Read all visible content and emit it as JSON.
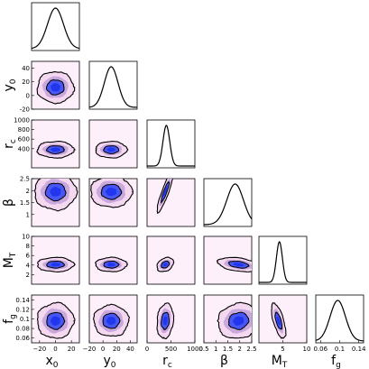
{
  "chart_data": {
    "type": "corner",
    "parameters": [
      {
        "key": "x0",
        "base": "x",
        "sub": "0",
        "range": [
          -30,
          30
        ],
        "ticks": [],
        "tick_labels": []
      },
      {
        "key": "y0",
        "base": "y",
        "sub": "0",
        "range": [
          -20,
          50
        ],
        "ticks": [
          -20,
          0,
          20,
          40
        ],
        "tick_labels": [
          "-20",
          "0",
          "20",
          "40"
        ]
      },
      {
        "key": "rc",
        "base": "r",
        "sub": "c",
        "range": [
          0,
          1000
        ],
        "ticks": [
          400,
          600,
          800,
          1000
        ],
        "tick_labels": [
          "400",
          "600",
          "800",
          "1000"
        ]
      },
      {
        "key": "beta",
        "base": "β",
        "sub": "",
        "range": [
          0.5,
          2.5
        ],
        "ticks": [
          1,
          1.5,
          2,
          2.5
        ],
        "tick_labels": [
          "1",
          "1.5",
          "2",
          "2.5"
        ]
      },
      {
        "key": "MT",
        "base": "M",
        "sub": "T",
        "range": [
          0,
          10
        ],
        "ticks": [
          2,
          4,
          6,
          8,
          10
        ],
        "tick_labels": [
          "2",
          "4",
          "6",
          "8",
          "10"
        ]
      },
      {
        "key": "fg",
        "base": "f",
        "sub": "g",
        "range": [
          0.05,
          0.15
        ],
        "ticks": [
          0.06,
          0.08,
          0.1,
          0.12,
          0.14
        ],
        "tick_labels": [
          "0.06",
          "0.08",
          "0.1",
          "0.12",
          "0.14"
        ]
      }
    ],
    "x_tick_labels": [
      {
        "param": "x0",
        "values": [
          -20,
          0,
          20
        ],
        "labels": [
          "−20",
          "0",
          "20"
        ]
      },
      {
        "param": "y0",
        "values": [
          -20,
          0,
          20,
          40
        ],
        "labels": [
          "−20",
          "0",
          "20",
          "40"
        ]
      },
      {
        "param": "rc",
        "values": [
          0,
          500,
          1000
        ],
        "labels": [
          "0",
          "500",
          "1000"
        ]
      },
      {
        "param": "beta",
        "values": [
          0.5,
          1,
          1.5,
          2,
          2.5
        ],
        "labels": [
          "0.5",
          "1",
          "1.5",
          "2",
          "2.5"
        ]
      },
      {
        "param": "MT",
        "values": [
          5,
          10
        ],
        "labels": [
          "5",
          "10"
        ]
      },
      {
        "param": "fg",
        "values": [
          0.06,
          0.1,
          0.14
        ],
        "labels": [
          "0.06",
          "0.1",
          "0.14"
        ]
      }
    ],
    "marginals": [
      {
        "param": "x0",
        "mean": 0,
        "sd": 10,
        "skew": 0
      },
      {
        "param": "y0",
        "mean": 12,
        "sd": 10,
        "skew": 0
      },
      {
        "param": "rc",
        "mean": 380,
        "sd": 75,
        "skew": 0.35
      },
      {
        "param": "beta",
        "mean": 1.95,
        "sd": 0.38,
        "skew": -0.45
      },
      {
        "param": "MT",
        "mean": 4.1,
        "sd": 0.65,
        "skew": 0.3
      },
      {
        "param": "fg",
        "mean": 0.096,
        "sd": 0.016,
        "skew": 0
      }
    ],
    "joint": [
      {
        "row": "y0",
        "col": "x0",
        "corr": 0.0
      },
      {
        "row": "rc",
        "col": "x0",
        "corr": 0.0
      },
      {
        "row": "rc",
        "col": "y0",
        "corr": 0.0
      },
      {
        "row": "beta",
        "col": "x0",
        "corr": 0.0
      },
      {
        "row": "beta",
        "col": "y0",
        "corr": 0.0
      },
      {
        "row": "beta",
        "col": "rc",
        "corr": 0.9
      },
      {
        "row": "MT",
        "col": "x0",
        "corr": 0.0
      },
      {
        "row": "MT",
        "col": "y0",
        "corr": 0.0
      },
      {
        "row": "MT",
        "col": "rc",
        "corr": 0.3
      },
      {
        "row": "MT",
        "col": "beta",
        "corr": -0.35
      },
      {
        "row": "fg",
        "col": "x0",
        "corr": 0.0
      },
      {
        "row": "fg",
        "col": "y0",
        "corr": 0.0
      },
      {
        "row": "fg",
        "col": "rc",
        "corr": 0.15
      },
      {
        "row": "fg",
        "col": "beta",
        "corr": 0.1
      },
      {
        "row": "fg",
        "col": "MT",
        "corr": -0.65
      }
    ],
    "contour_levels": [
      "1σ",
      "2σ"
    ],
    "colors": {
      "outer": "#f4d8f0",
      "mid": "#c9a8de",
      "inner": "#3a4ef5",
      "line": "#000000",
      "bg": "#fdf0fb"
    }
  }
}
